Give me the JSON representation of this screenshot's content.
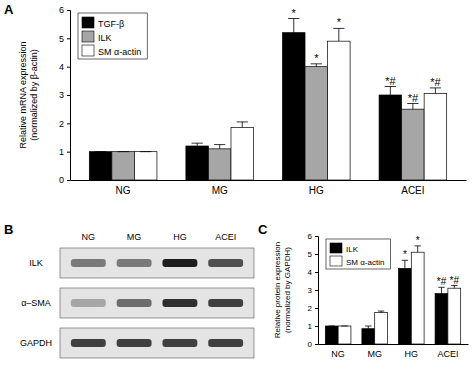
{
  "chart_data": [
    {
      "type": "bar",
      "title": "A",
      "y_label": [
        "Relative mRNA expression",
        "(normalized by β-actin)"
      ],
      "categories": [
        "NG",
        "MG",
        "HG",
        "ACEI"
      ],
      "series": [
        {
          "name": "TGF-β",
          "color": "#000000",
          "values": [
            1,
            1.2,
            5.2,
            3.0
          ],
          "errors": [
            0,
            0.1,
            0.5,
            0.3
          ],
          "significance": [
            null,
            null,
            "*",
            "*#"
          ]
        },
        {
          "name": "ILK",
          "color": "#a6a6a6",
          "values": [
            1,
            1.1,
            4.0,
            2.5
          ],
          "errors": [
            0,
            0.15,
            0.1,
            0.2
          ],
          "significance": [
            null,
            null,
            "*",
            "*#"
          ]
        },
        {
          "name": "SM α-actin",
          "color": "#ffffff",
          "values": [
            1,
            1.85,
            4.9,
            3.05
          ],
          "errors": [
            0,
            0.2,
            0.45,
            0.2
          ],
          "significance": [
            null,
            null,
            "*",
            "*#"
          ]
        }
      ],
      "ylim": [
        0,
        6
      ],
      "yticks": [
        0,
        1,
        2,
        3,
        4,
        5,
        6
      ],
      "legend": "upper left",
      "grid": false
    },
    {
      "type": "bar",
      "title": "C",
      "y_label": [
        "Relative protein expression",
        "(normalized by GAPDH)"
      ],
      "categories": [
        "NG",
        "MG",
        "HG",
        "ACEI"
      ],
      "series": [
        {
          "name": "ILK",
          "color": "#000000",
          "values": [
            1,
            0.85,
            4.2,
            2.8
          ],
          "errors": [
            0,
            0.15,
            0.45,
            0.35
          ],
          "significance": [
            null,
            null,
            "*",
            "*#"
          ]
        },
        {
          "name": "SM α-actin",
          "color": "#ffffff",
          "values": [
            1,
            1.75,
            5.1,
            3.1
          ],
          "errors": [
            0,
            0.08,
            0.35,
            0.15
          ],
          "significance": [
            null,
            null,
            "*",
            "*#"
          ]
        }
      ],
      "ylim": [
        0,
        6
      ],
      "yticks": [
        0,
        1,
        2,
        3,
        4,
        5,
        6
      ],
      "legend": "upper left",
      "grid": false
    }
  ],
  "blot": {
    "title": "B",
    "lanes": [
      "NG",
      "MG",
      "HG",
      "ACEI"
    ],
    "rows": [
      {
        "name": "ILK",
        "intensity": [
          0.6,
          0.6,
          0.9,
          0.75
        ]
      },
      {
        "name": "α–SMA",
        "intensity": [
          0.45,
          0.65,
          0.85,
          0.8
        ]
      },
      {
        "name": "GAPDH",
        "intensity": [
          0.8,
          0.8,
          0.8,
          0.8
        ]
      }
    ]
  }
}
